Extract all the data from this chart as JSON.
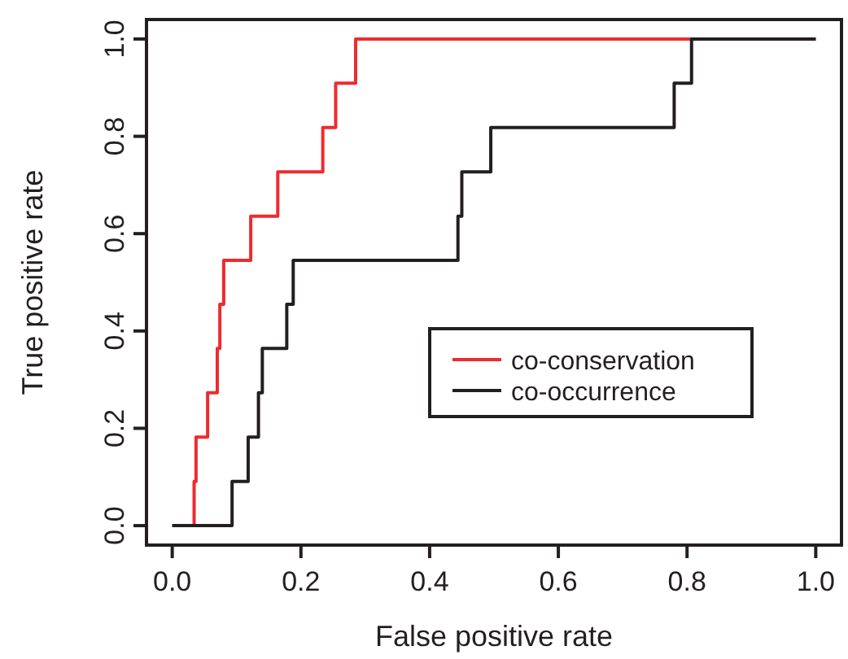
{
  "chart_data": {
    "type": "step",
    "xlabel": "False positive rate",
    "ylabel": "True positive rate",
    "xlim": [
      -0.04,
      1.04
    ],
    "ylim": [
      -0.04,
      1.04
    ],
    "xticks": [
      {
        "value": 0,
        "label": "0.0"
      },
      0.2,
      0.4,
      0.6,
      0.8,
      {
        "value": 1,
        "label": "1.0"
      }
    ],
    "yticks": [
      {
        "value": 0,
        "label": "0.0"
      },
      0.2,
      0.4,
      0.6,
      0.8,
      {
        "value": 1,
        "label": "1.0"
      }
    ],
    "grid": false,
    "legend": "bottom right",
    "marker": "none",
    "line_style": "solid",
    "series": [
      {
        "name": "co-conservation",
        "color": "#ee2b2f",
        "x": [
          0,
          0.034,
          0.037,
          0.055,
          0.07,
          0.074,
          0.08,
          0.122,
          0.164,
          0.234,
          0.254,
          0.285,
          1
        ],
        "values": [
          0,
          0.091,
          0.182,
          0.273,
          0.364,
          0.455,
          0.545,
          0.636,
          0.727,
          0.818,
          0.909,
          1,
          1
        ]
      },
      {
        "name": "co-occurrence",
        "color": "#231f20",
        "x": [
          0,
          0.093,
          0.118,
          0.134,
          0.14,
          0.178,
          0.188,
          0.444,
          0.45,
          0.495,
          0.78,
          0.807,
          1
        ],
        "values": [
          0,
          0.091,
          0.182,
          0.273,
          0.364,
          0.455,
          0.545,
          0.636,
          0.727,
          0.818,
          0.909,
          1,
          1
        ]
      }
    ]
  }
}
